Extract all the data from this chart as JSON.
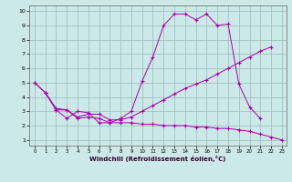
{
  "xlabel": "Windchill (Refroidissement éolien,°C)",
  "bg_color": "#cce8e8",
  "line_color": "#aa00aa",
  "grid_color": "#99bbbb",
  "xlim_min": -0.5,
  "xlim_max": 23.4,
  "ylim_min": 0.6,
  "ylim_max": 10.4,
  "xticks": [
    0,
    1,
    2,
    3,
    4,
    5,
    6,
    7,
    8,
    9,
    10,
    11,
    12,
    13,
    14,
    15,
    16,
    17,
    18,
    19,
    20,
    21,
    22,
    23
  ],
  "yticks": [
    1,
    2,
    3,
    4,
    5,
    6,
    7,
    8,
    9,
    10
  ],
  "line1_x": [
    0,
    1,
    2,
    3,
    4,
    5,
    6,
    7,
    8,
    9,
    10,
    11,
    12,
    13,
    14,
    15,
    16,
    17,
    18,
    19,
    20,
    21
  ],
  "line1_y": [
    5.0,
    4.3,
    3.1,
    2.5,
    3.0,
    2.9,
    2.2,
    2.2,
    2.5,
    3.0,
    5.1,
    6.8,
    9.0,
    9.8,
    9.8,
    9.4,
    9.8,
    9.0,
    9.1,
    4.9,
    3.3,
    2.5
  ],
  "line2_x": [
    0,
    1,
    2,
    3,
    4,
    5,
    6,
    7,
    8,
    9,
    10,
    11,
    12,
    13,
    14,
    15,
    16,
    17,
    18,
    19,
    20,
    21,
    22
  ],
  "line2_y": [
    5.0,
    4.3,
    3.2,
    3.1,
    2.6,
    2.8,
    2.8,
    2.4,
    2.4,
    2.6,
    3.0,
    3.4,
    3.8,
    4.2,
    4.6,
    4.9,
    5.2,
    5.6,
    6.0,
    6.4,
    6.8,
    7.2,
    7.5
  ],
  "line3_x": [
    1,
    2,
    3,
    4,
    5,
    6,
    7,
    8,
    9,
    10,
    11,
    12,
    13,
    14,
    15,
    16,
    17,
    18,
    19,
    20,
    21,
    22,
    23
  ],
  "line3_y": [
    4.3,
    3.1,
    3.1,
    2.5,
    2.6,
    2.5,
    2.2,
    2.2,
    2.2,
    2.1,
    2.1,
    2.0,
    2.0,
    2.0,
    1.9,
    1.9,
    1.8,
    1.8,
    1.7,
    1.6,
    1.4,
    1.2,
    1.0
  ]
}
